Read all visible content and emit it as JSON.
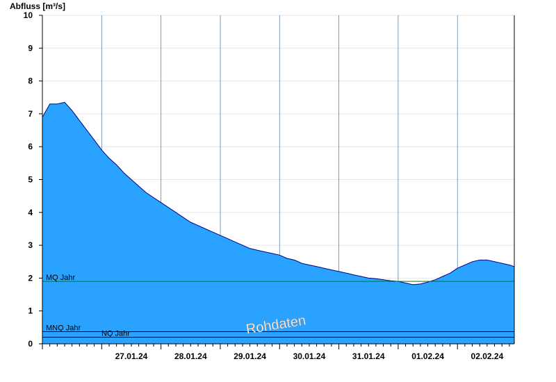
{
  "chart_data": {
    "type": "area",
    "title": "",
    "ylabel": "Abfluss [m³/s]",
    "xlabel": "",
    "ylim": [
      0,
      10
    ],
    "yticks": [
      0,
      1,
      2,
      3,
      4,
      5,
      6,
      7,
      8,
      9,
      10
    ],
    "xlim": [
      "2024-01-26T00:00",
      "2024-02-02T23:00"
    ],
    "x_tick_labels": [
      "27.01.24",
      "28.01.24",
      "29.01.24",
      "30.01.24",
      "31.01.24",
      "01.02.24",
      "02.02.24"
    ],
    "grid": true,
    "colors": {
      "fill": "#29a3ff",
      "line": "#00008b",
      "mq": "#008000",
      "ref": "#000000"
    },
    "reference_lines": [
      {
        "label": "MQ Jahr",
        "value": 1.9
      },
      {
        "label": "MNQ Jahr",
        "value": 0.37
      },
      {
        "label": "NQ Jahr",
        "value": 0.2
      }
    ],
    "watermark": "Rohdaten",
    "series": [
      {
        "x": [
          "2024-01-26T00:00",
          "2024-01-26T03:00",
          "2024-01-26T06:00",
          "2024-01-26T09:00",
          "2024-01-26T12:00",
          "2024-01-26T15:00",
          "2024-01-26T18:00",
          "2024-01-26T21:00",
          "2024-01-27T00:00",
          "2024-01-27T03:00",
          "2024-01-27T06:00",
          "2024-01-27T09:00",
          "2024-01-27T12:00",
          "2024-01-27T15:00",
          "2024-01-27T18:00",
          "2024-01-27T21:00",
          "2024-01-28T00:00",
          "2024-01-28T03:00",
          "2024-01-28T06:00",
          "2024-01-28T09:00",
          "2024-01-28T12:00",
          "2024-01-28T15:00",
          "2024-01-28T18:00",
          "2024-01-28T21:00",
          "2024-01-29T00:00",
          "2024-01-29T03:00",
          "2024-01-29T06:00",
          "2024-01-29T09:00",
          "2024-01-29T12:00",
          "2024-01-29T15:00",
          "2024-01-29T18:00",
          "2024-01-29T21:00",
          "2024-01-30T00:00",
          "2024-01-30T03:00",
          "2024-01-30T06:00",
          "2024-01-30T09:00",
          "2024-01-30T12:00",
          "2024-01-30T15:00",
          "2024-01-30T18:00",
          "2024-01-30T21:00",
          "2024-01-31T00:00",
          "2024-01-31T03:00",
          "2024-01-31T06:00",
          "2024-01-31T09:00",
          "2024-01-31T12:00",
          "2024-01-31T15:00",
          "2024-01-31T18:00",
          "2024-01-31T21:00",
          "2024-02-01T00:00",
          "2024-02-01T03:00",
          "2024-02-01T06:00",
          "2024-02-01T09:00",
          "2024-02-01T12:00",
          "2024-02-01T15:00",
          "2024-02-01T18:00",
          "2024-02-01T21:00",
          "2024-02-02T00:00",
          "2024-02-02T03:00",
          "2024-02-02T06:00",
          "2024-02-02T09:00",
          "2024-02-02T12:00",
          "2024-02-02T15:00",
          "2024-02-02T18:00",
          "2024-02-02T21:00",
          "2024-02-02T23:00"
        ],
        "y": [
          6.9,
          7.3,
          7.3,
          7.35,
          7.1,
          6.8,
          6.5,
          6.2,
          5.9,
          5.65,
          5.45,
          5.2,
          5.0,
          4.8,
          4.6,
          4.45,
          4.3,
          4.15,
          4.0,
          3.85,
          3.7,
          3.6,
          3.5,
          3.4,
          3.3,
          3.2,
          3.1,
          3.0,
          2.9,
          2.85,
          2.8,
          2.75,
          2.7,
          2.6,
          2.55,
          2.45,
          2.4,
          2.35,
          2.3,
          2.25,
          2.2,
          2.15,
          2.1,
          2.05,
          2.0,
          1.98,
          1.95,
          1.92,
          1.9,
          1.85,
          1.8,
          1.82,
          1.88,
          1.95,
          2.05,
          2.15,
          2.3,
          2.4,
          2.5,
          2.55,
          2.55,
          2.5,
          2.45,
          2.4,
          2.35
        ]
      }
    ]
  }
}
